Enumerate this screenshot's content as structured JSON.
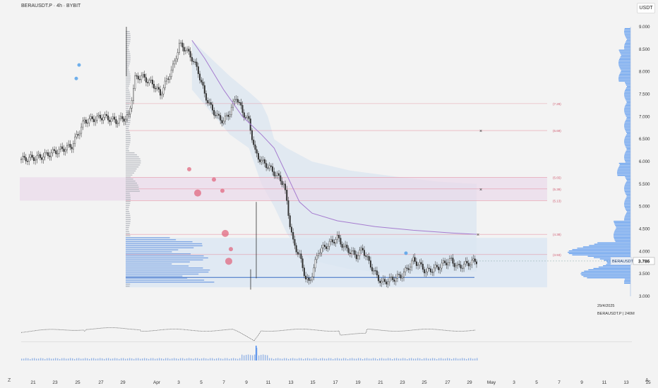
{
  "header": {
    "title": "BERAUSDT.P · 4h · BYBIT",
    "currency": "USDT"
  },
  "info": {
    "date": "29/4/2025",
    "symbol_tf": "BERAUSDT.P | 240M"
  },
  "corner_left": "Z",
  "corner_right": "A",
  "chart_data": {
    "type": "candlestick",
    "x_ticks": [
      "21",
      "23",
      "25",
      "27",
      "29",
      "Apr",
      "3",
      "5",
      "7",
      "9",
      "11",
      "13",
      "15",
      "17",
      "19",
      "21",
      "23",
      "25",
      "27",
      "29",
      "May",
      "3",
      "5",
      "7",
      "9",
      "11",
      "13",
      "15"
    ],
    "y_ticks": [
      "9.000",
      "8.500",
      "8.000",
      "7.500",
      "7.000",
      "6.500",
      "6.000",
      "5.500",
      "5.000",
      "4.500",
      "4.000",
      "3.500",
      "3.000"
    ],
    "y_range": [
      3.0,
      9.0
    ],
    "last_price": {
      "symbol": "BERAUSDT.P",
      "value": "3.786"
    },
    "fib_levels": [
      {
        "label": "(7.29)",
        "value": 7.29
      },
      {
        "label": "(6.69)",
        "value": 6.69
      },
      {
        "label": "(5.65)",
        "value": 5.65
      },
      {
        "label": "(5.39)",
        "value": 5.39
      },
      {
        "label": "(5.13)",
        "value": 5.13
      },
      {
        "label": "(4.38)",
        "value": 4.38
      },
      {
        "label": "(3.93)",
        "value": 3.93
      }
    ],
    "close_path": [
      [
        0,
        6.05
      ],
      [
        3,
        6.1
      ],
      [
        6,
        6.25
      ],
      [
        8,
        6.35
      ],
      [
        10,
        6.9
      ],
      [
        13,
        7.0
      ],
      [
        15,
        6.9
      ],
      [
        17,
        7.0
      ],
      [
        18,
        7.85
      ],
      [
        19,
        7.9
      ],
      [
        21,
        7.7
      ],
      [
        22,
        7.5
      ],
      [
        23,
        7.8
      ],
      [
        24,
        8.1
      ],
      [
        25,
        8.6
      ],
      [
        26,
        8.5
      ],
      [
        27,
        8.3
      ],
      [
        28,
        8.0
      ],
      [
        29,
        7.5
      ],
      [
        30,
        7.2
      ],
      [
        31,
        7.0
      ],
      [
        32,
        6.9
      ],
      [
        33,
        7.1
      ],
      [
        34,
        7.45
      ],
      [
        35,
        7.1
      ],
      [
        36,
        6.9
      ],
      [
        37,
        6.2
      ],
      [
        38,
        6.0
      ],
      [
        39,
        5.9
      ],
      [
        40,
        5.75
      ],
      [
        41,
        5.6
      ],
      [
        41.5,
        5.5
      ],
      [
        42,
        5.1
      ],
      [
        42.5,
        4.6
      ],
      [
        43,
        4.2
      ],
      [
        44,
        3.9
      ],
      [
        45,
        3.4
      ],
      [
        45.5,
        3.3
      ],
      [
        46,
        3.5
      ],
      [
        47,
        4.0
      ],
      [
        48,
        4.1
      ],
      [
        49,
        4.2
      ],
      [
        50,
        4.3
      ],
      [
        51,
        4.1
      ],
      [
        52,
        4.0
      ],
      [
        53,
        3.9
      ],
      [
        54,
        4.05
      ],
      [
        55,
        3.75
      ],
      [
        56,
        3.5
      ],
      [
        57,
        3.3
      ],
      [
        58,
        3.35
      ],
      [
        59,
        3.4
      ],
      [
        60,
        3.45
      ],
      [
        61,
        3.6
      ],
      [
        62,
        3.8
      ],
      [
        63,
        3.7
      ],
      [
        64,
        3.55
      ],
      [
        65,
        3.6
      ],
      [
        66,
        3.65
      ],
      [
        67,
        3.75
      ],
      [
        68,
        3.8
      ],
      [
        69,
        3.65
      ],
      [
        70,
        3.7
      ],
      [
        71,
        3.75
      ],
      [
        72,
        3.79
      ]
    ],
    "sma_line": [
      [
        27,
        8.7
      ],
      [
        29,
        8.3
      ],
      [
        32,
        7.6
      ],
      [
        35,
        7.0
      ],
      [
        38,
        6.6
      ],
      [
        40,
        6.3
      ],
      [
        42,
        5.7
      ],
      [
        44,
        5.1
      ],
      [
        46,
        4.85
      ],
      [
        50,
        4.68
      ],
      [
        56,
        4.55
      ],
      [
        62,
        4.47
      ],
      [
        68,
        4.41
      ],
      [
        72,
        4.38
      ]
    ],
    "band_upper": [
      [
        27,
        8.7
      ],
      [
        30,
        8.3
      ],
      [
        33,
        7.9
      ],
      [
        36,
        7.55
      ],
      [
        38,
        7.3
      ],
      [
        39,
        7.0
      ],
      [
        40,
        6.5
      ],
      [
        42,
        6.3
      ],
      [
        46,
        6.0
      ],
      [
        52,
        5.8
      ],
      [
        60,
        5.65
      ],
      [
        66,
        5.55
      ],
      [
        72,
        5.5
      ]
    ],
    "band_lower": [
      [
        27,
        7.6
      ],
      [
        30,
        7.1
      ],
      [
        33,
        6.6
      ],
      [
        36,
        6.3
      ],
      [
        38,
        5.5
      ],
      [
        40,
        5.0
      ],
      [
        41,
        4.7
      ],
      [
        42,
        4.4
      ],
      [
        44,
        4.0
      ],
      [
        46,
        3.8
      ],
      [
        52,
        3.6
      ],
      [
        60,
        3.5
      ],
      [
        66,
        3.5
      ],
      [
        72,
        3.55
      ]
    ]
  }
}
